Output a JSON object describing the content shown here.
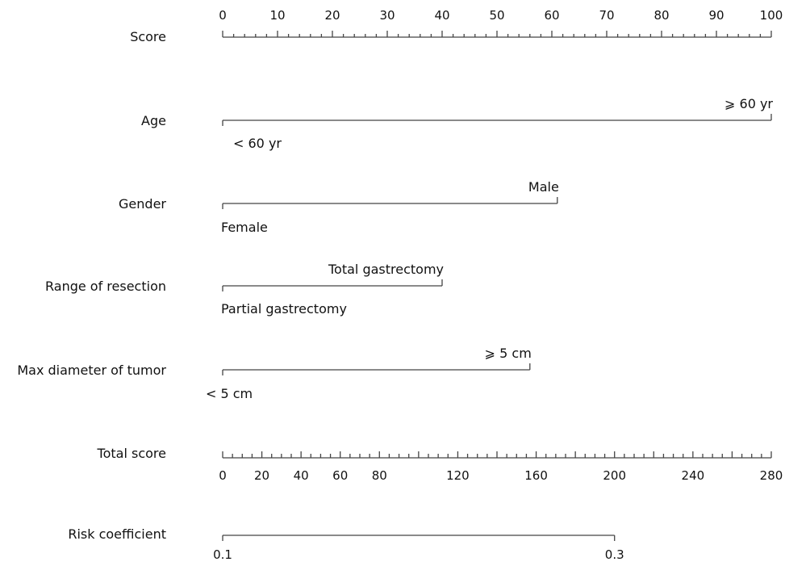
{
  "chart_data": {
    "type": "nomogram",
    "rows": [
      {
        "label": "Score",
        "kind": "scale",
        "min": 0,
        "max": 100,
        "major_ticks": [
          0,
          10,
          20,
          30,
          40,
          50,
          60,
          70,
          80,
          90,
          100
        ],
        "minor_step": 2,
        "labels_position": "above"
      },
      {
        "label": "Age",
        "kind": "variable",
        "levels": [
          {
            "label": "< 60 yr",
            "score": 0
          },
          {
            "label": "⩾ 60 yr",
            "score": 100
          }
        ]
      },
      {
        "label": "Gender",
        "kind": "variable",
        "levels": [
          {
            "label": "Female",
            "score": 0
          },
          {
            "label": "Male",
            "score": 61
          }
        ]
      },
      {
        "label": "Range of resection",
        "kind": "variable",
        "levels": [
          {
            "label": "Partial gastrectomy",
            "score": 0
          },
          {
            "label": "Total gastrectomy",
            "score": 40
          }
        ]
      },
      {
        "label": "Max diameter of tumor",
        "kind": "variable",
        "levels": [
          {
            "label": "< 5 cm",
            "score": 0
          },
          {
            "label": "⩾ 5 cm",
            "score": 56
          }
        ]
      },
      {
        "label": "Total score",
        "kind": "scale",
        "min": 0,
        "max": 280,
        "major_ticks": [
          0,
          20,
          40,
          60,
          80,
          120,
          160,
          200,
          240,
          280
        ],
        "minor_step": 5,
        "labels_position": "below"
      },
      {
        "label": "Risk coefficient",
        "kind": "risk",
        "total_score_range": [
          0,
          200
        ],
        "tick_labels": [
          "0.1",
          "0.3"
        ],
        "labels_position": "below"
      }
    ]
  }
}
